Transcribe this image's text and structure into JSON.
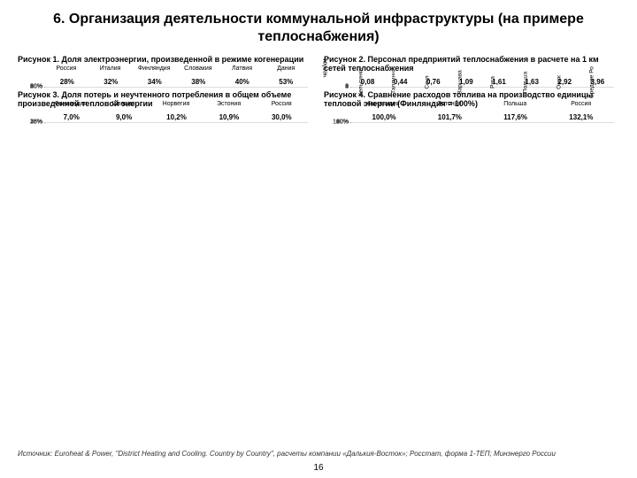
{
  "page_title": "6. Организация деятельности коммунальной инфраструктуры (на примере теплоснабжения)",
  "page_number": "16",
  "source": "Источник: Euroheat & Power, \"District Heating and Cooling. Country by Country\", расчеты компании «Далькия-Восток»; Росстат, форма 1-ТЕП; Минэнерго России",
  "charts": {
    "c1": {
      "title": "Рисунок 1. Доля электроэнергии, произведенной в режиме когенерации",
      "type": "bar",
      "ylim": [
        0,
        60
      ],
      "ystep": 10,
      "ysuffix": "%",
      "grid_color": "#dcdcdc",
      "bar_default": "#3b5e8c",
      "highlight_color": "#c6151b",
      "categories": [
        "Россия",
        "Италия",
        "Финляндия",
        "Словакия",
        "Латвия",
        "Дания"
      ],
      "values": [
        28,
        32,
        34,
        38,
        40,
        53
      ],
      "labels": [
        "28%",
        "32%",
        "34%",
        "38%",
        "40%",
        "53%"
      ],
      "highlight_index": 0,
      "rotate_x": false
    },
    "c2": {
      "title": "Рисунок 2. Персонал предприятий теплоснабжения в расчете на 1 км сетей теплоснабжения",
      "type": "bar",
      "ylim": [
        0,
        4
      ],
      "ystep": 1,
      "ysuffix": "",
      "ylabel": "чел/км",
      "grid_color": "#dcdcdc",
      "bar_default": "#3b5e8c",
      "highlight_color": "#c6151b",
      "categories": [
        "Хельсинки",
        "Таллинн",
        "Сеул",
        "Варшава",
        "Рига",
        "Польша",
        "Омск",
        "Среднее Ро"
      ],
      "values": [
        0.08,
        0.44,
        0.76,
        1.09,
        1.61,
        1.63,
        2.92,
        3.96
      ],
      "labels": [
        "0,08",
        "0,44",
        "0,76",
        "1,09",
        "1,61",
        "1,63",
        "2,92",
        "3,96"
      ],
      "highlight_index": 7,
      "rotate_x": true
    },
    "c3": {
      "title": "Рисунок 3. Доля потерь и неучтенного потребления в общем объеме произведенной тепловой энергии",
      "type": "bar",
      "ylim": [
        0,
        35
      ],
      "ystep": 5,
      "ysuffix": "%",
      "grid_color": "#dcdcdc",
      "bar_default": "#3b5e8c",
      "highlight_color": "#c6151b",
      "categories": [
        "Финляндия",
        "Швеция",
        "Норвегия",
        "Эстония",
        "Россия"
      ],
      "values": [
        7.0,
        9.0,
        10.2,
        10.9,
        30.0
      ],
      "labels": [
        "7,0%",
        "9,0%",
        "10,2%",
        "10,9%",
        "30,0%"
      ],
      "highlight_index": 4,
      "rotate_x": false
    },
    "c4": {
      "title": "Рисунок 4. Сравнение расходов топлива на производство единицы тепловой энергии (Финляндия = 100%)",
      "type": "bar",
      "ylim": [
        0,
        140
      ],
      "ystep": 20,
      "ysuffix": "%",
      "grid_color": "#dcdcdc",
      "bar_default": "#3b5e8c",
      "highlight_color": "#c6151b",
      "categories": [
        "Финляндия",
        "Эстония",
        "Польша",
        "Россия"
      ],
      "values": [
        100.0,
        101.7,
        117.6,
        132.1
      ],
      "labels": [
        "100,0%",
        "101,7%",
        "117,6%",
        "132,1%"
      ],
      "highlight_index": 3,
      "rotate_x": false
    }
  }
}
